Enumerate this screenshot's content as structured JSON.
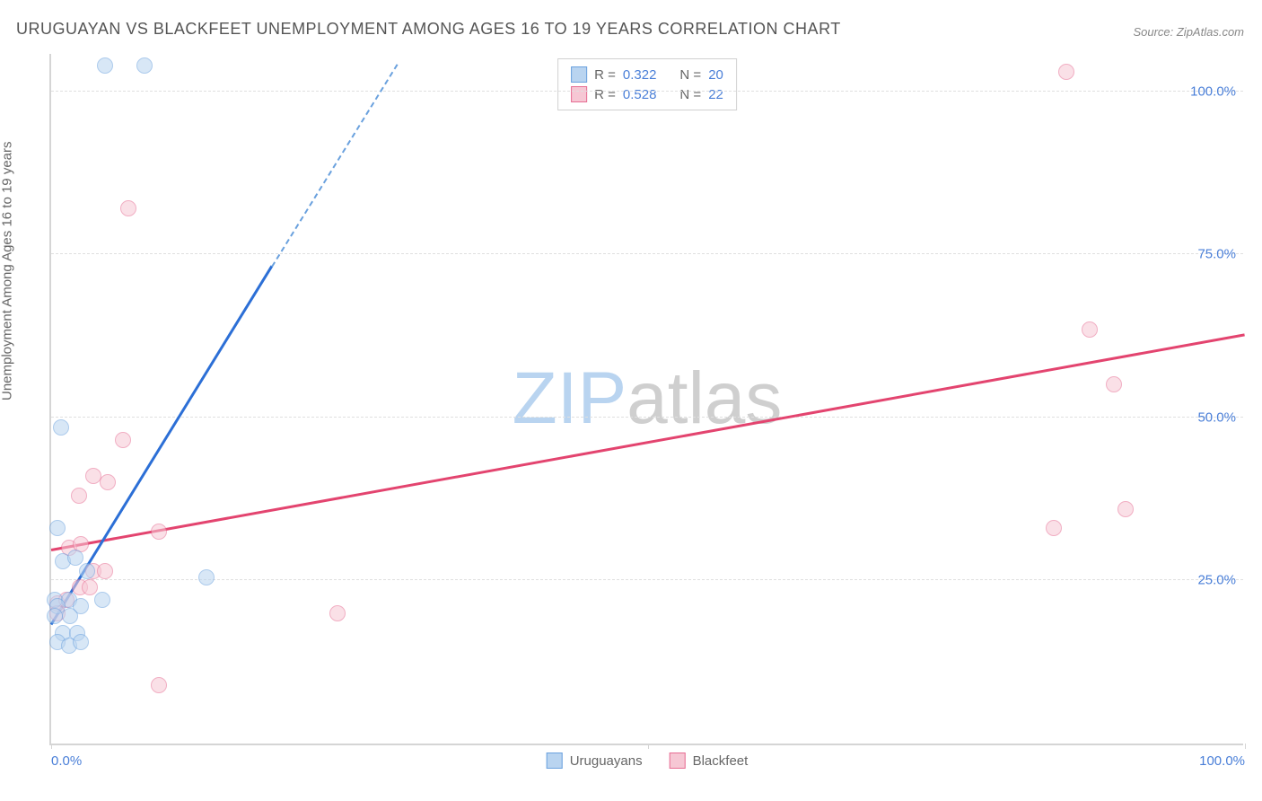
{
  "title": "URUGUAYAN VS BLACKFEET UNEMPLOYMENT AMONG AGES 16 TO 19 YEARS CORRELATION CHART",
  "source": "Source: ZipAtlas.com",
  "ylabel": "Unemployment Among Ages 16 to 19 years",
  "chart": {
    "type": "scatter",
    "xlim": [
      0,
      100
    ],
    "ylim": [
      0,
      106
    ],
    "y_ticks": [
      25,
      50,
      75,
      100
    ],
    "y_tick_labels": [
      "25.0%",
      "50.0%",
      "75.0%",
      "100.0%"
    ],
    "x_ticks": [
      0,
      50,
      100
    ],
    "x_tick_labels": [
      "0.0%",
      "",
      "100.0%"
    ],
    "x_tick_marks": [
      0,
      50,
      100
    ],
    "background_color": "#ffffff",
    "grid_color": "#e0e0e0",
    "axis_color": "#d5d5d5"
  },
  "series": {
    "uruguayans": {
      "label": "Uruguayans",
      "R_label": "R =",
      "R": "0.322",
      "N_label": "N =",
      "N": "20",
      "fill": "#b9d4f0",
      "fill_opacity": 0.55,
      "stroke": "#6aa1de",
      "marker_radius": 9,
      "points": [
        [
          4.5,
          104
        ],
        [
          7.8,
          104
        ],
        [
          0.8,
          48.5
        ],
        [
          0.5,
          33
        ],
        [
          1.0,
          28
        ],
        [
          2.0,
          28.5
        ],
        [
          3.0,
          26.5
        ],
        [
          13,
          25.5
        ],
        [
          0.3,
          22
        ],
        [
          1.5,
          22
        ],
        [
          4.3,
          22
        ],
        [
          0.5,
          21
        ],
        [
          2.5,
          21
        ],
        [
          0.3,
          19.5
        ],
        [
          1.6,
          19.5
        ],
        [
          1.0,
          17
        ],
        [
          2.2,
          17
        ],
        [
          0.5,
          15.5
        ],
        [
          1.5,
          15
        ],
        [
          2.5,
          15.5
        ]
      ],
      "trend": {
        "x1": 0,
        "y1": 18,
        "x2": 18.5,
        "y2": 73,
        "x2_dash": 29,
        "y2_dash": 104
      }
    },
    "blackfeet": {
      "label": "Blackfeet",
      "R_label": "R =",
      "R": "0.528",
      "N_label": "N =",
      "N": "22",
      "fill": "#f6c7d4",
      "fill_opacity": 0.55,
      "stroke": "#e76d93",
      "marker_radius": 9,
      "points": [
        [
          85,
          103
        ],
        [
          6.5,
          82
        ],
        [
          87,
          63.5
        ],
        [
          89,
          55
        ],
        [
          6.0,
          46.5
        ],
        [
          3.5,
          41
        ],
        [
          4.7,
          40
        ],
        [
          2.3,
          38
        ],
        [
          90,
          36
        ],
        [
          84,
          33
        ],
        [
          9.0,
          32.5
        ],
        [
          1.5,
          30
        ],
        [
          2.5,
          30.5
        ],
        [
          3.5,
          26.5
        ],
        [
          4.5,
          26.5
        ],
        [
          2.4,
          24
        ],
        [
          3.2,
          24
        ],
        [
          0.5,
          21.5
        ],
        [
          1.3,
          22
        ],
        [
          24,
          20
        ],
        [
          0.5,
          20
        ],
        [
          9.0,
          9
        ]
      ],
      "trend": {
        "x1": 0,
        "y1": 29.5,
        "x2": 100,
        "y2": 62.5
      }
    }
  },
  "watermark": {
    "part1": "ZIP",
    "part2": "atlas",
    "color1": "#b9d4f0",
    "color2": "#cfcfcf"
  }
}
